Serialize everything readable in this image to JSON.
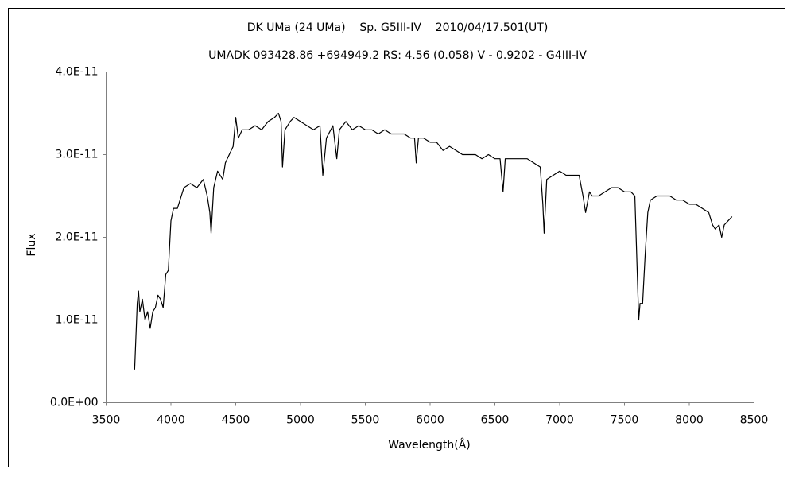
{
  "chart_data": {
    "type": "line",
    "title": "DK UMa (24 UMa)    Sp. G5III-IV    2010/04/17.501(UT)",
    "subtitle": "UMADK 093428.86 +694949.2 RS: 4.56 (0.058) V - 0.9202 - G4III-IV",
    "xlabel": "Wavelength(Å)",
    "ylabel": "Flux",
    "color": "#000000",
    "xlim": [
      3500,
      8500
    ],
    "xticks": [
      3500,
      4000,
      4500,
      5000,
      5500,
      6000,
      6500,
      7000,
      7500,
      8000,
      8500
    ],
    "ylim": [
      0,
      4e-11
    ],
    "yticks": [
      {
        "value": 0,
        "label": "0.0E+00"
      },
      {
        "value": 1e-11,
        "label": "1.0E-11"
      },
      {
        "value": 2e-11,
        "label": "2.0E-11"
      },
      {
        "value": 3e-11,
        "label": "3.0E-11"
      },
      {
        "value": 4e-11,
        "label": "4.0E-11"
      }
    ],
    "x": [
      3720,
      3740,
      3750,
      3760,
      3780,
      3800,
      3820,
      3840,
      3860,
      3880,
      3900,
      3920,
      3940,
      3960,
      3980,
      4000,
      4020,
      4050,
      4080,
      4100,
      4150,
      4200,
      4250,
      4280,
      4300,
      4310,
      4330,
      4360,
      4400,
      4420,
      4450,
      4480,
      4500,
      4520,
      4550,
      4600,
      4650,
      4700,
      4750,
      4800,
      4830,
      4850,
      4861,
      4880,
      4920,
      4950,
      5000,
      5050,
      5100,
      5150,
      5172,
      5200,
      5250,
      5280,
      5300,
      5350,
      5400,
      5450,
      5500,
      5550,
      5600,
      5650,
      5700,
      5750,
      5800,
      5850,
      5880,
      5893,
      5910,
      5950,
      6000,
      6050,
      6100,
      6150,
      6200,
      6250,
      6300,
      6350,
      6400,
      6450,
      6500,
      6540,
      6563,
      6580,
      6600,
      6650,
      6700,
      6750,
      6800,
      6850,
      6870,
      6880,
      6900,
      6950,
      7000,
      7050,
      7100,
      7150,
      7180,
      7200,
      7230,
      7250,
      7300,
      7350,
      7400,
      7450,
      7500,
      7550,
      7580,
      7600,
      7610,
      7620,
      7640,
      7660,
      7680,
      7700,
      7750,
      7800,
      7850,
      7900,
      7950,
      8000,
      8050,
      8100,
      8150,
      8180,
      8200,
      8230,
      8250,
      8270,
      8300,
      8330
    ],
    "values": [
      4e-12,
      1.2e-11,
      1.35e-11,
      1.1e-11,
      1.25e-11,
      1e-11,
      1.1e-11,
      9e-12,
      1.1e-11,
      1.15e-11,
      1.3e-11,
      1.25e-11,
      1.15e-11,
      1.55e-11,
      1.6e-11,
      2.2e-11,
      2.35e-11,
      2.35e-11,
      2.5e-11,
      2.6e-11,
      2.65e-11,
      2.6e-11,
      2.7e-11,
      2.5e-11,
      2.3e-11,
      2.05e-11,
      2.6e-11,
      2.8e-11,
      2.7e-11,
      2.9e-11,
      3e-11,
      3.1e-11,
      3.45e-11,
      3.2e-11,
      3.3e-11,
      3.3e-11,
      3.35e-11,
      3.3e-11,
      3.4e-11,
      3.45e-11,
      3.5e-11,
      3.4e-11,
      2.85e-11,
      3.3e-11,
      3.4e-11,
      3.45e-11,
      3.4e-11,
      3.35e-11,
      3.3e-11,
      3.35e-11,
      2.75e-11,
      3.2e-11,
      3.35e-11,
      2.95e-11,
      3.3e-11,
      3.4e-11,
      3.3e-11,
      3.35e-11,
      3.3e-11,
      3.3e-11,
      3.25e-11,
      3.3e-11,
      3.25e-11,
      3.25e-11,
      3.25e-11,
      3.2e-11,
      3.2e-11,
      2.9e-11,
      3.2e-11,
      3.2e-11,
      3.15e-11,
      3.15e-11,
      3.05e-11,
      3.1e-11,
      3.05e-11,
      3e-11,
      3e-11,
      3e-11,
      2.95e-11,
      3e-11,
      2.95e-11,
      2.95e-11,
      2.55e-11,
      2.95e-11,
      2.95e-11,
      2.95e-11,
      2.95e-11,
      2.95e-11,
      2.9e-11,
      2.85e-11,
      2.4e-11,
      2.05e-11,
      2.7e-11,
      2.75e-11,
      2.8e-11,
      2.75e-11,
      2.75e-11,
      2.75e-11,
      2.5e-11,
      2.3e-11,
      2.55e-11,
      2.5e-11,
      2.5e-11,
      2.55e-11,
      2.6e-11,
      2.6e-11,
      2.55e-11,
      2.55e-11,
      2.5e-11,
      1.5e-11,
      1e-11,
      1.2e-11,
      1.2e-11,
      1.8e-11,
      2.3e-11,
      2.45e-11,
      2.5e-11,
      2.5e-11,
      2.5e-11,
      2.45e-11,
      2.45e-11,
      2.4e-11,
      2.4e-11,
      2.35e-11,
      2.3e-11,
      2.15e-11,
      2.1e-11,
      2.15e-11,
      2e-11,
      2.15e-11,
      2.2e-11,
      2.25e-11
    ]
  }
}
